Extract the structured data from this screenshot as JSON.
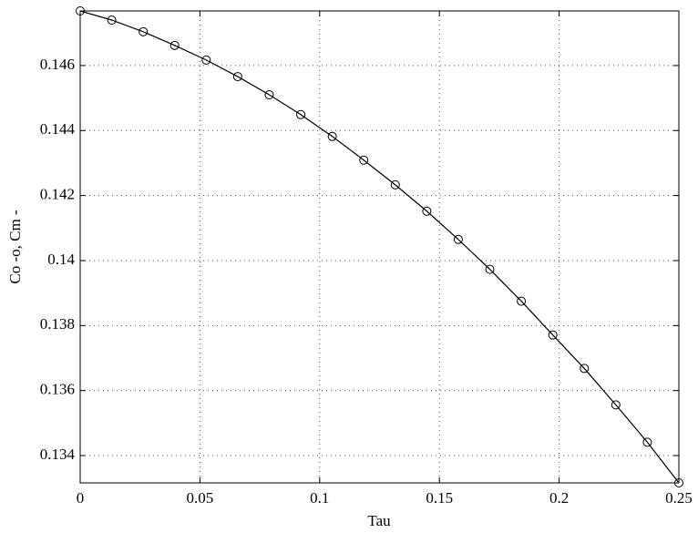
{
  "chart_data": {
    "type": "line",
    "xlabel": "Tau",
    "ylabel": "Co -o, Cm -",
    "x": [
      0,
      0.01316,
      0.02632,
      0.03947,
      0.05263,
      0.06579,
      0.07895,
      0.09211,
      0.10526,
      0.11842,
      0.13158,
      0.14474,
      0.15789,
      0.17105,
      0.18421,
      0.19737,
      0.21053,
      0.22368,
      0.23684,
      0.25
    ],
    "series": [
      {
        "color": "#000000",
        "marker": "circle",
        "values": [
          0.14768,
          0.1474,
          0.14704,
          0.14662,
          0.14617,
          0.14566,
          0.1451,
          0.14449,
          0.14382,
          0.14309,
          0.14233,
          0.14152,
          0.14065,
          0.13973,
          0.13875,
          0.13771,
          0.13668,
          0.13556,
          0.13441,
          0.13316
        ]
      }
    ],
    "xlim": [
      0,
      0.25
    ],
    "xticks": [
      0,
      0.05,
      0.1,
      0.15,
      0.2,
      0.25
    ],
    "ylim": [
      0.13316,
      0.14768
    ],
    "yticks": [
      0.134,
      0.136,
      0.138,
      0.14,
      0.142,
      0.144,
      0.146
    ],
    "grid": true
  }
}
